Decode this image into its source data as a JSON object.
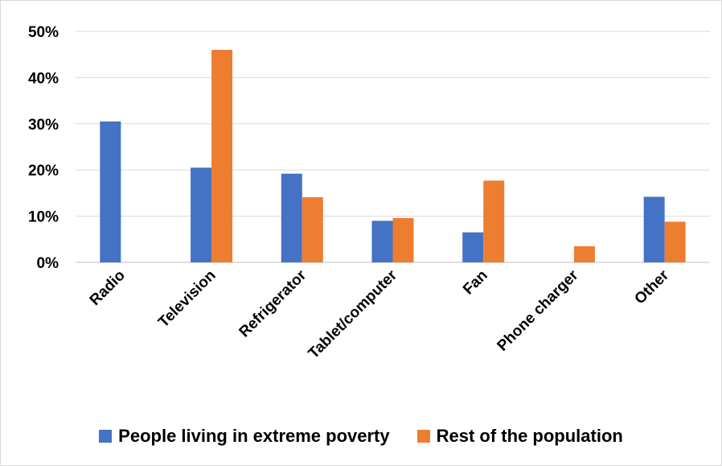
{
  "chart_data": {
    "type": "bar",
    "categories": [
      "Radio",
      "Television",
      "Refrigerator",
      "Tablet/computer",
      "Fan",
      "Phone charger",
      "Other"
    ],
    "series": [
      {
        "name": "People living in extreme poverty",
        "color": "#4472C4",
        "values": [
          30.5,
          20.5,
          19.2,
          9.0,
          6.5,
          0,
          14.2
        ]
      },
      {
        "name": "Rest of the population",
        "color": "#ED7D31",
        "values": [
          0,
          46.0,
          14.1,
          9.6,
          17.7,
          3.5,
          8.8
        ]
      }
    ],
    "y_ticks": [
      "0%",
      "10%",
      "20%",
      "30%",
      "40%",
      "50%"
    ],
    "ylim": [
      0,
      50
    ],
    "grid": true,
    "legend_position": "bottom"
  }
}
